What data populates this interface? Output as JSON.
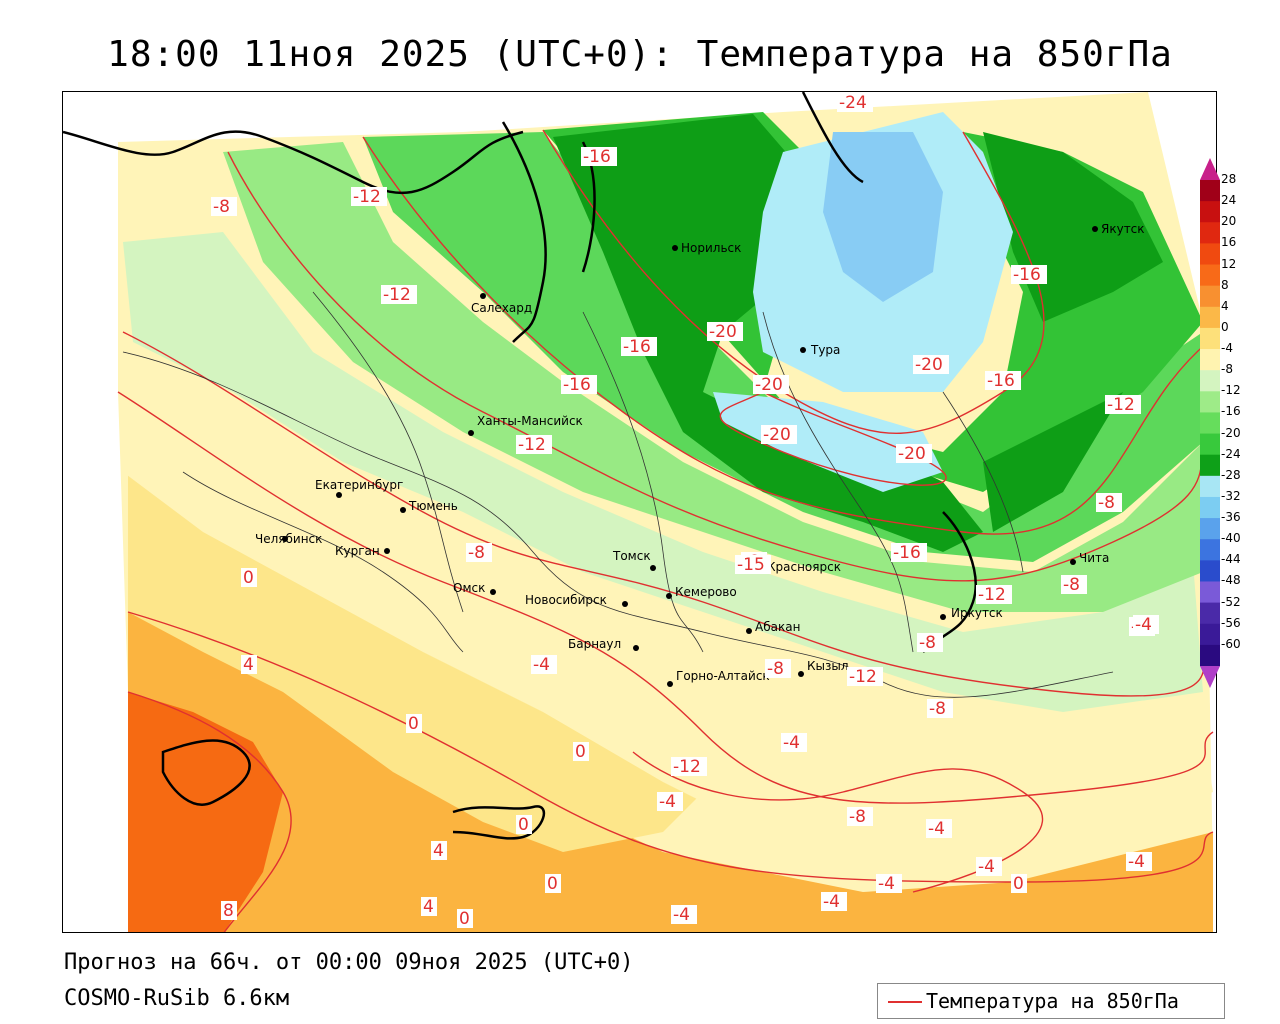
{
  "header": {
    "title": "18:00 11ноя 2025 (UTC+0): Температура на 850гПа"
  },
  "footer": {
    "forecast": "Прогноз на 66ч. от 00:00 09ноя 2025 (UTC+0)",
    "model": "COSMO-RuSib 6.6км"
  },
  "legend": {
    "line_label": "Температура на 850гПа",
    "line_color": "#e03030"
  },
  "colorbar": {
    "labels": [
      "28",
      "24",
      "20",
      "16",
      "12",
      "8",
      "4",
      "0",
      "-4",
      "-8",
      "-12",
      "-16",
      "-20",
      "-24",
      "-28",
      "-32",
      "-36",
      "-40",
      "-44",
      "-48",
      "-52",
      "-56",
      "-60"
    ],
    "colors": [
      "#a00018",
      "#c81010",
      "#e02810",
      "#f04a10",
      "#f86a18",
      "#f89030",
      "#fbb848",
      "#fde07a",
      "#fff3b0",
      "#d4f4c0",
      "#9eeb88",
      "#66dd5c",
      "#38c93c",
      "#0ea018",
      "#a8e6f4",
      "#7ccdf2",
      "#5aa2ec",
      "#3c74e0",
      "#2a4ccc",
      "#7a5ad8",
      "#4a2aa8",
      "#3a1a98",
      "#2a0a80"
    ],
    "top_arrow_color": "#c8208a",
    "bottom_arrow_color": "#b040c8"
  },
  "map": {
    "palette": {
      "plus8": "#f66a12",
      "plus4": "#fbb440",
      "zero": "#fde68a",
      "minus4": "#fff4b8",
      "minus8": "#d4f4c0",
      "minus12": "#98ea84",
      "minus16": "#5cd85a",
      "minus20": "#33c336",
      "minus24": "#0e9e16",
      "cold1": "#b0ecf8",
      "cold2": "#88ccf4",
      "contour": "#e03030"
    },
    "cities": [
      {
        "name": "Норильск"
      },
      {
        "name": "Якутск"
      },
      {
        "name": "Салехард"
      },
      {
        "name": "Тура"
      },
      {
        "name": "Ханты-Мансийск"
      },
      {
        "name": "Екатеринбург"
      },
      {
        "name": "Тюмень"
      },
      {
        "name": "Челябинск"
      },
      {
        "name": "Курган"
      },
      {
        "name": "Омск"
      },
      {
        "name": "Новосибирск"
      },
      {
        "name": "Томск"
      },
      {
        "name": "Красноярск"
      },
      {
        "name": "Кемерово"
      },
      {
        "name": "Абакан"
      },
      {
        "name": "Барнаул"
      },
      {
        "name": "Горно-Алтайск"
      },
      {
        "name": "Кызыл"
      },
      {
        "name": "Иркутск"
      },
      {
        "name": "Чита"
      }
    ],
    "isotherm_labels": [
      "-24",
      "-16",
      "-12",
      "-8",
      "-12",
      "-20",
      "-16",
      "-20",
      "-16",
      "-16",
      "-20",
      "-20",
      "-16",
      "-12",
      "-12",
      "-20",
      "-20",
      "-16",
      "-8",
      "-8",
      "-8",
      "-4",
      "-12",
      "-8",
      "-15",
      "-8",
      "-12",
      "-4",
      "-4",
      "-8",
      "-4",
      "-12",
      "-4",
      "-8",
      "-4",
      "-4",
      "-4",
      "-4",
      "-4",
      "-4",
      "0",
      "0",
      "0",
      "0",
      "0",
      "0",
      "4",
      "4",
      "4",
      "8",
      "0",
      "-8"
    ]
  }
}
